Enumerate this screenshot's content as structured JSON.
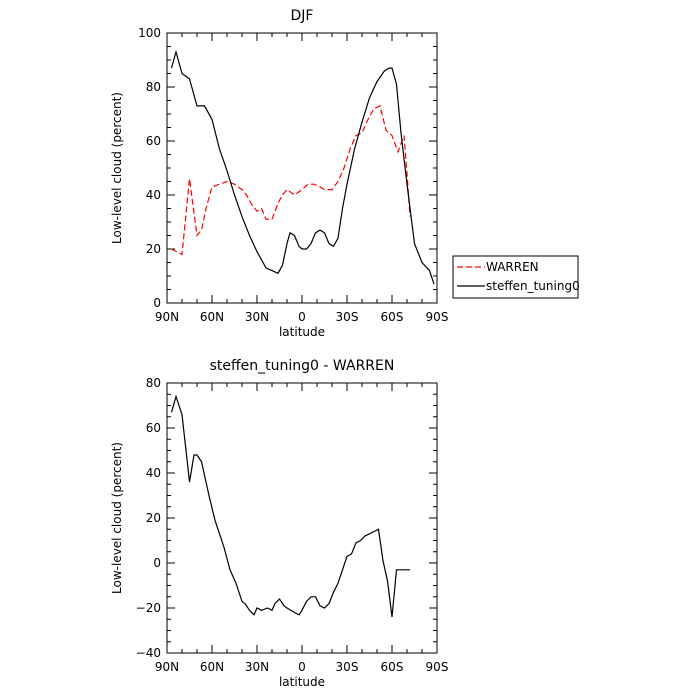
{
  "chart_data": [
    {
      "type": "line",
      "title": "DJF",
      "xlabel": "latitude",
      "ylabel": "Low-level cloud (percent)",
      "xlim": [
        90,
        -90
      ],
      "ylim": [
        0,
        100
      ],
      "xticks": [
        90,
        60,
        30,
        0,
        -30,
        -60,
        -90
      ],
      "xtick_labels": [
        "90N",
        "60N",
        "30N",
        "0",
        "30S",
        "60S",
        "90S"
      ],
      "yticks": [
        0,
        20,
        40,
        60,
        80,
        100
      ],
      "ytick_labels": [
        "0",
        "20",
        "40",
        "60",
        "80",
        "100"
      ],
      "legend_placement": "right",
      "series": [
        {
          "name": "WARREN",
          "color": "#ff0000",
          "dash": "dashed",
          "x": [
            87,
            80,
            75,
            70,
            67,
            64,
            60,
            55,
            50,
            45,
            40,
            37,
            33,
            30,
            27,
            24,
            20,
            16,
            13,
            10,
            5,
            0,
            -4,
            -8,
            -12,
            -15,
            -20,
            -24,
            -28,
            -32,
            -36,
            -40,
            -44,
            -48,
            -52,
            -56,
            -60,
            -64,
            -66,
            -68,
            -70,
            -72
          ],
          "y": [
            20,
            18,
            46,
            25,
            27,
            35,
            43,
            44,
            45,
            44,
            42,
            40,
            36,
            34,
            35,
            31,
            31,
            37,
            40,
            42,
            40,
            42,
            44,
            44,
            43,
            42,
            42,
            45,
            50,
            57,
            62,
            63,
            68,
            72,
            73,
            64,
            62,
            56,
            59,
            62,
            48,
            32
          ]
        },
        {
          "name": "steffen_tuning0",
          "color": "#000000",
          "dash": "solid",
          "x": [
            87,
            84,
            80,
            75,
            70,
            65,
            60,
            55,
            50,
            45,
            40,
            35,
            30,
            27,
            24,
            20,
            16,
            13,
            10,
            8,
            5,
            2,
            0,
            -3,
            -6,
            -9,
            -12,
            -15,
            -18,
            -21,
            -24,
            -27,
            -30,
            -35,
            -40,
            -45,
            -50,
            -55,
            -58,
            -60,
            -63,
            -66,
            -70,
            -75,
            -80,
            -85,
            -88
          ],
          "y": [
            87,
            93,
            85,
            83,
            73,
            73,
            68,
            57,
            49,
            40,
            32,
            25,
            19,
            16,
            13,
            12,
            11,
            14,
            22,
            26,
            25,
            21,
            20,
            20,
            22,
            26,
            27,
            26,
            22,
            21,
            24,
            35,
            44,
            57,
            67,
            76,
            82,
            86,
            87,
            87,
            81,
            63,
            44,
            22,
            15,
            12,
            7
          ]
        }
      ]
    },
    {
      "type": "line",
      "title": "steffen_tuning0 - WARREN",
      "xlabel": "latitude",
      "ylabel": "Low-level cloud (percent)",
      "xlim": [
        90,
        -90
      ],
      "ylim": [
        -40,
        80
      ],
      "xticks": [
        90,
        60,
        30,
        0,
        -30,
        -60,
        -90
      ],
      "xtick_labels": [
        "90N",
        "60N",
        "30N",
        "0",
        "30S",
        "60S",
        "90S"
      ],
      "yticks": [
        -40,
        -20,
        0,
        20,
        40,
        60,
        80
      ],
      "ytick_labels": [
        "−40",
        "−20",
        "0",
        "20",
        "40",
        "60",
        "80"
      ],
      "series": [
        {
          "color": "#000000",
          "dash": "solid",
          "x": [
            87,
            84,
            80,
            75,
            72,
            70,
            67,
            65,
            62,
            58,
            55,
            52,
            48,
            44,
            40,
            38,
            35,
            32,
            30,
            27,
            23,
            20,
            18,
            15,
            12,
            10,
            5,
            2,
            0,
            -3,
            -6,
            -9,
            -12,
            -15,
            -18,
            -21,
            -24,
            -27,
            -30,
            -33,
            -36,
            -39,
            -42,
            -45,
            -48,
            -51,
            -54,
            -57,
            -60,
            -63,
            -66,
            -70,
            -72
          ],
          "y": [
            67,
            74,
            66,
            36,
            48,
            48,
            45,
            39,
            30,
            19,
            13,
            7,
            -3,
            -9,
            -17,
            -18,
            -21,
            -23,
            -20,
            -21,
            -20,
            -21,
            -18,
            -16,
            -19,
            -20,
            -22,
            -23,
            -21,
            -17,
            -15,
            -15,
            -19,
            -20,
            -18,
            -13,
            -9,
            -3,
            3,
            4,
            9,
            10,
            12,
            13,
            14,
            15,
            1,
            -8,
            -24,
            -3,
            -3,
            -3,
            -3
          ]
        }
      ]
    }
  ]
}
